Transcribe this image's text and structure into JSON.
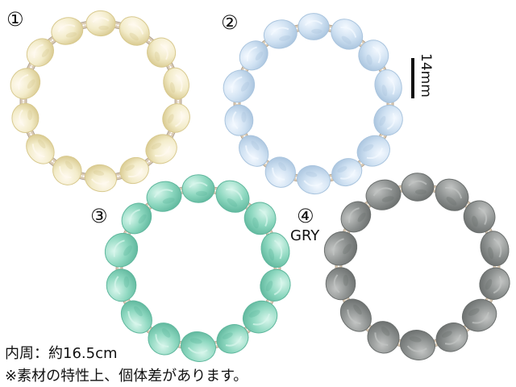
{
  "labels": {
    "item1": "①",
    "item2": "②",
    "item3": "③",
    "item4": "④",
    "color_code": "GRY"
  },
  "scale": {
    "text": "14mm"
  },
  "notes": {
    "inner_size": "内周：約16.5cm",
    "disclaimer": "※素材の特性上、個体差があります。"
  },
  "bracelets": [
    {
      "name": "bracelet-1",
      "color": "#f3ecca",
      "shade": "#d8c98e",
      "highlight": "#fffaf0",
      "beads": 14
    },
    {
      "name": "bracelet-2",
      "color": "#cfe1f2",
      "shade": "#a9c4de",
      "highlight": "#f4f9ff",
      "beads": 14
    },
    {
      "name": "bracelet-3",
      "color": "#8ed8c0",
      "shade": "#5fb79d",
      "highlight": "#d9f6ec",
      "beads": 14
    },
    {
      "name": "bracelet-4",
      "color": "#8e9291",
      "shade": "#6b6f6e",
      "highlight": "#c2c4c3",
      "beads": 14
    }
  ],
  "spacer_colors": {
    "metal": "#d9c9b3",
    "stone": "#ffffff"
  }
}
